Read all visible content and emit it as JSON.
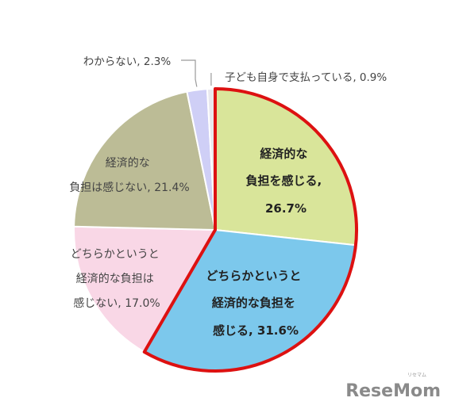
{
  "chart_data": {
    "type": "pie",
    "title": "",
    "slices": [
      {
        "label": [
          "経済的な",
          "負担を感じる,",
          "26.7%"
        ],
        "value": 26.7,
        "color": "#d9e59a",
        "highlight": true
      },
      {
        "label": [
          "どちらかというと",
          "経済的な負担を",
          "感じる, 31.6%"
        ],
        "value": 31.6,
        "color": "#7cc8ec",
        "highlight": true
      },
      {
        "label": [
          "どちらかというと",
          "経済的な負担は",
          "感じない, 17.0%"
        ],
        "value": 17.0,
        "color": "#f9d7e6",
        "highlight": false
      },
      {
        "label": [
          "経済的な",
          "負担は感じない, 21.4%"
        ],
        "value": 21.4,
        "color": "#bcbc96",
        "highlight": false
      },
      {
        "label": [
          "わからない, 2.3%"
        ],
        "value": 2.3,
        "color": "#cfcff6",
        "highlight": false
      },
      {
        "label": [
          "子ども自身で支払っている, 0.9%"
        ],
        "value": 0.9,
        "color": "#e8e8ee",
        "highlight": false
      }
    ],
    "highlight_color": "#dd1111"
  },
  "watermark": {
    "text": "ReseMom",
    "ruby": "リセマム"
  }
}
